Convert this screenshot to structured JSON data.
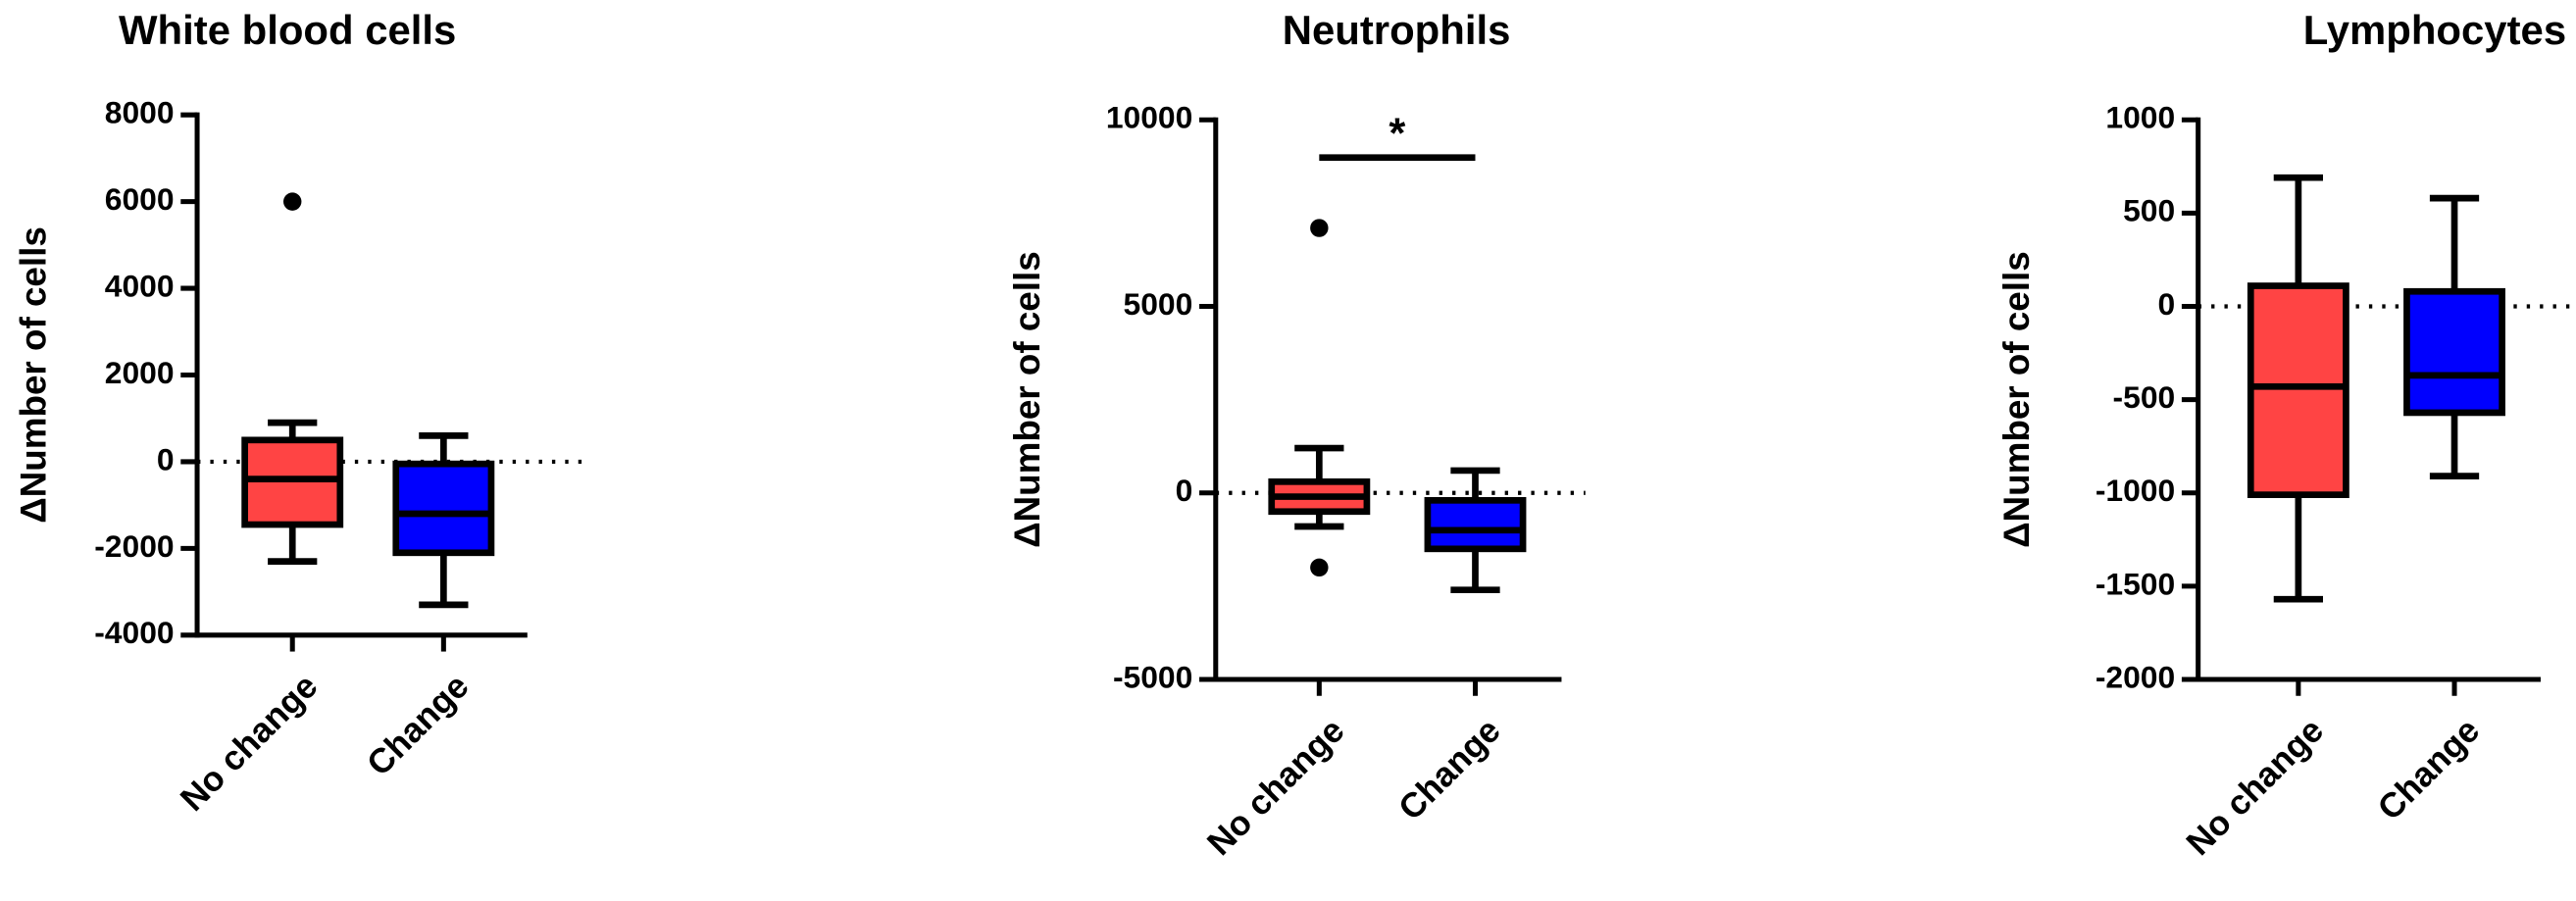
{
  "chart_data": [
    {
      "type": "box",
      "title": "White blood cells",
      "y_label": "ΔNumber of cells",
      "categories": [
        "No change",
        "Change"
      ],
      "colors": [
        "#ff4444",
        "#0000ff"
      ],
      "min": [
        -2300,
        -3300
      ],
      "q1": [
        -1450,
        -2100
      ],
      "median": [
        -400,
        -1200
      ],
      "q3": [
        500,
        -50
      ],
      "max": [
        900,
        600
      ],
      "outliers": [
        [
          6000
        ],
        []
      ],
      "ylim": [
        -4000,
        8000
      ],
      "yticks": [
        -4000,
        -2000,
        0,
        2000,
        4000,
        6000,
        8000
      ],
      "reference_line": 0
    },
    {
      "type": "box",
      "title": "Neutrophils",
      "y_label": "ΔNumber of cells",
      "categories": [
        "No change",
        "Change"
      ],
      "colors": [
        "#ff4444",
        "#0000ff"
      ],
      "min": [
        -900,
        -2600
      ],
      "q1": [
        -500,
        -1500
      ],
      "median": [
        -100,
        -1000
      ],
      "q3": [
        300,
        -200
      ],
      "max": [
        1200,
        600
      ],
      "outliers": [
        [
          7100,
          -2000
        ],
        []
      ],
      "ylim": [
        -5000,
        10000
      ],
      "yticks": [
        -5000,
        0,
        5000,
        10000
      ],
      "reference_line": 0,
      "annotation": "*"
    },
    {
      "type": "box",
      "title": "Lymphocytes",
      "y_label": "ΔNumber of cells",
      "categories": [
        "No change",
        "Change"
      ],
      "colors": [
        "#ff4444",
        "#0000ff"
      ],
      "min": [
        -1570,
        -910
      ],
      "q1": [
        -1010,
        -570
      ],
      "median": [
        -430,
        -370
      ],
      "q3": [
        110,
        80
      ],
      "max": [
        690,
        580
      ],
      "outliers": [
        [],
        []
      ],
      "ylim": [
        -2000,
        1000
      ],
      "yticks": [
        -2000,
        -1500,
        -1000,
        -500,
        0,
        500,
        1000
      ],
      "reference_line": 0
    }
  ]
}
